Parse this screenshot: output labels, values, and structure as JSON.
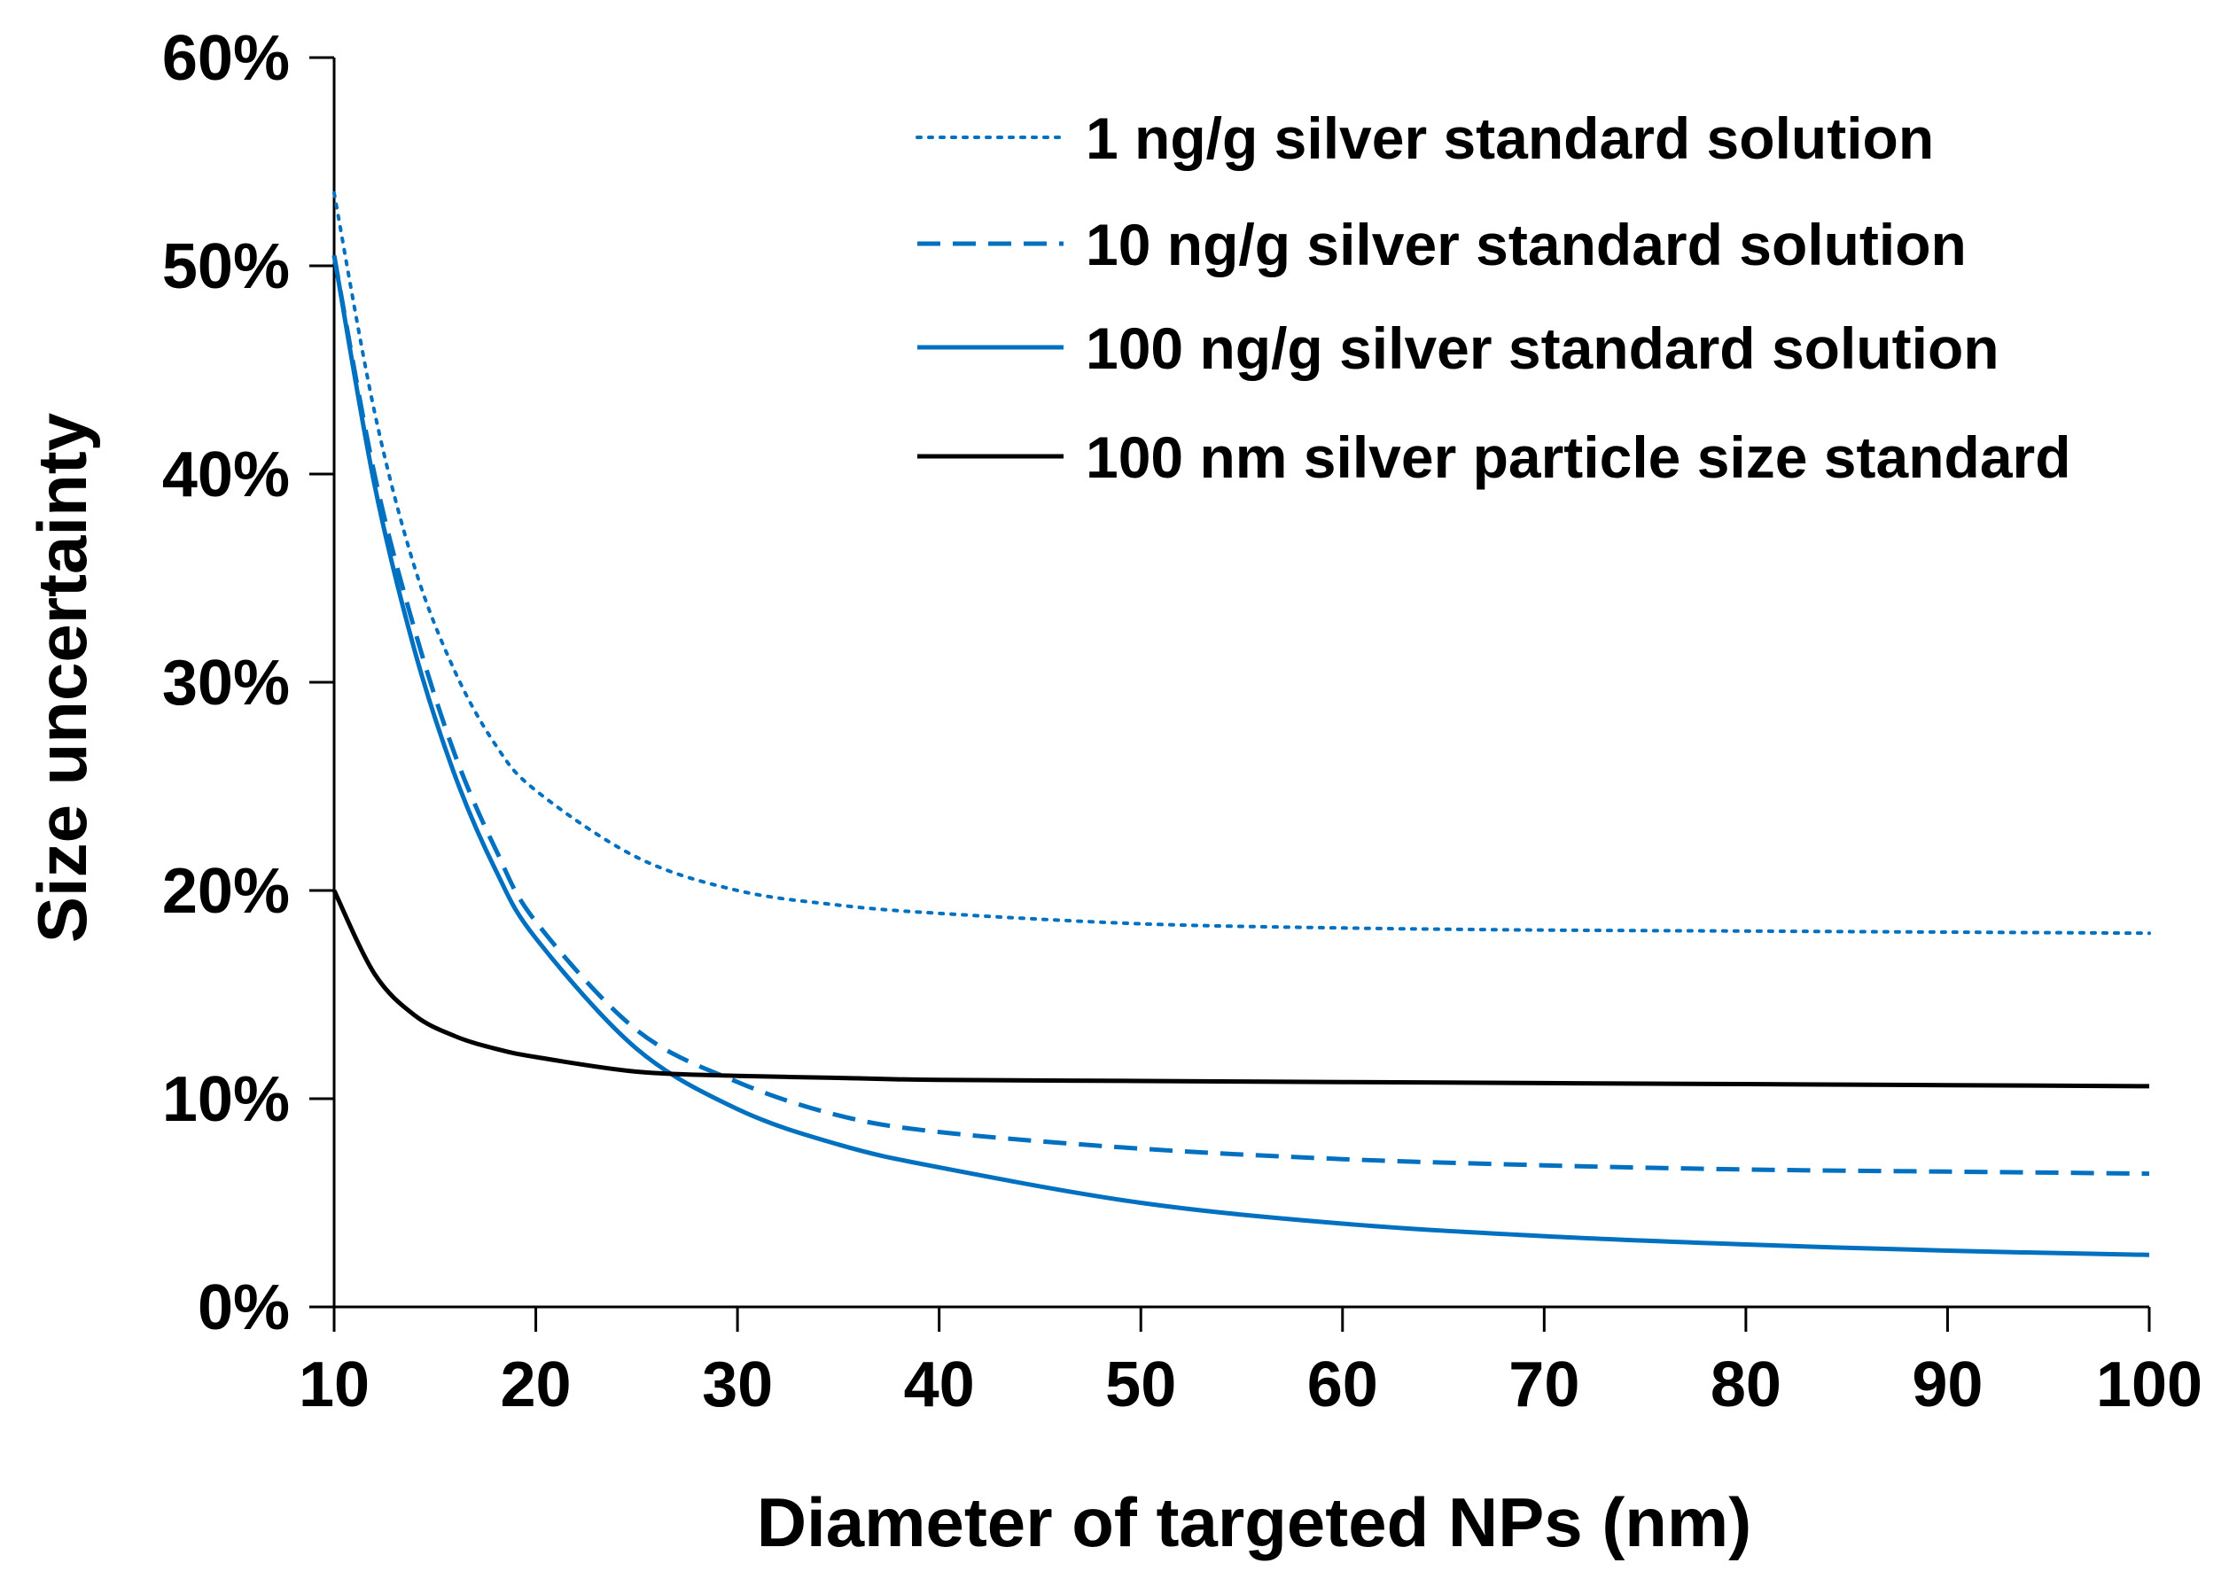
{
  "chart_data": {
    "type": "line",
    "title": "",
    "xlabel": "Diameter of targeted NPs (nm)",
    "ylabel": "Size uncertainty",
    "xlim": [
      10,
      100
    ],
    "ylim": [
      0,
      60
    ],
    "x_ticks": [
      "10",
      "20",
      "30",
      "40",
      "50",
      "60",
      "70",
      "80",
      "90",
      "100"
    ],
    "y_ticks": [
      "0%",
      "10%",
      "20%",
      "30%",
      "40%",
      "50%",
      "60%"
    ],
    "legend_position": "top-right",
    "colors": {
      "blue": "#0070C0",
      "black": "#000000"
    },
    "x": [
      10,
      12,
      14,
      16,
      18,
      20,
      25,
      30,
      35,
      40,
      50,
      60,
      70,
      80,
      90,
      100
    ],
    "series": [
      {
        "name": "1 ng/g silver standard solution",
        "color": "#0070C0",
        "dash": "dotted",
        "values": [
          53.5,
          43.0,
          35.5,
          30.5,
          27.0,
          24.8,
          21.6,
          20.0,
          19.3,
          18.9,
          18.4,
          18.2,
          18.1,
          18.05,
          18.0,
          17.95
        ]
      },
      {
        "name": "10 ng/g silver standard solution",
        "color": "#0070C0",
        "dash": "dashed",
        "values": [
          50.5,
          40.0,
          32.5,
          26.5,
          22.0,
          18.5,
          13.3,
          10.8,
          9.2,
          8.4,
          7.6,
          7.1,
          6.8,
          6.6,
          6.5,
          6.4
        ]
      },
      {
        "name": "100 ng/g silver standard solution",
        "color": "#0070C0",
        "dash": "solid",
        "values": [
          50.5,
          39.5,
          31.5,
          25.5,
          21.0,
          17.7,
          12.4,
          9.5,
          7.8,
          6.7,
          5.0,
          4.0,
          3.4,
          3.0,
          2.7,
          2.5
        ]
      },
      {
        "name": "100 nm silver particle size standard",
        "color": "#000000",
        "dash": "solid",
        "values": [
          20.0,
          16.0,
          14.0,
          13.0,
          12.4,
          12.0,
          11.3,
          11.1,
          11.0,
          10.9,
          10.85,
          10.8,
          10.75,
          10.7,
          10.65,
          10.6
        ]
      }
    ]
  }
}
